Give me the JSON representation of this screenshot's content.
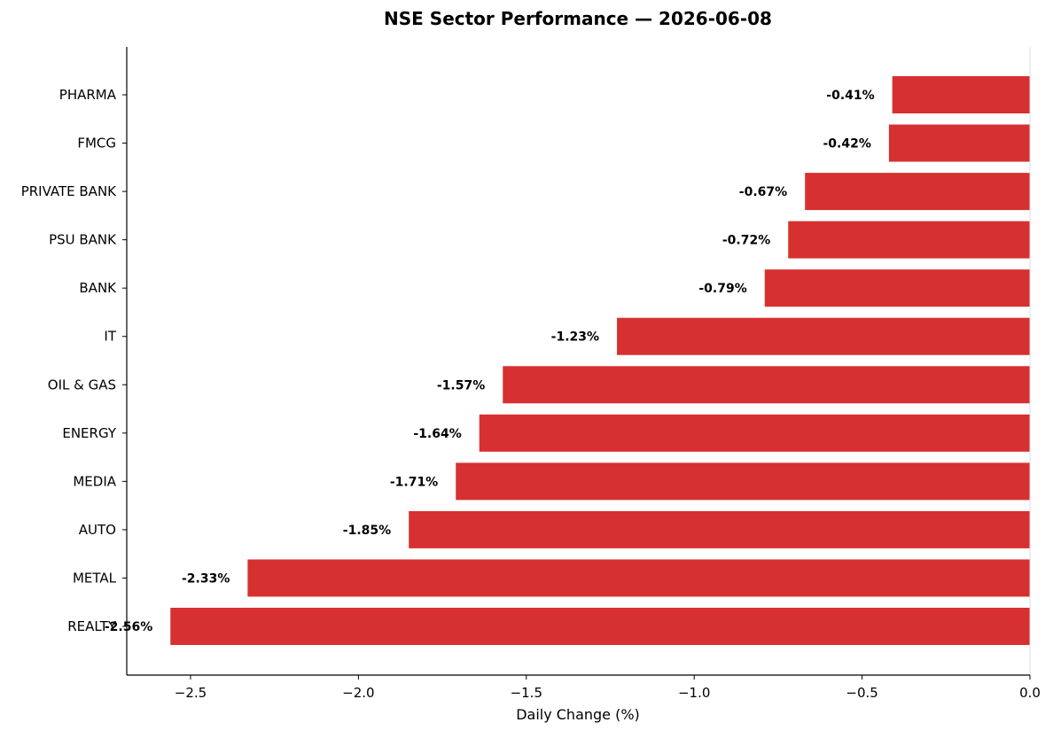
{
  "chart_data": {
    "type": "bar",
    "orientation": "horizontal",
    "title": "NSE Sector Performance — 2026-06-08",
    "xlabel": "Daily Change (%)",
    "ylabel": "",
    "categories": [
      "PHARMA",
      "FMCG",
      "PRIVATE BANK",
      "PSU BANK",
      "BANK",
      "IT",
      "OIL & GAS",
      "ENERGY",
      "MEDIA",
      "AUTO",
      "METAL",
      "REALTY"
    ],
    "values": [
      -0.41,
      -0.42,
      -0.67,
      -0.72,
      -0.79,
      -1.23,
      -1.57,
      -1.64,
      -1.71,
      -1.85,
      -2.33,
      -2.56
    ],
    "data_labels": [
      "-0.41%",
      "-0.42%",
      "-0.67%",
      "-0.72%",
      "-0.79%",
      "-1.23%",
      "-1.57%",
      "-1.64%",
      "-1.71%",
      "-1.85%",
      "-2.33%",
      "-2.56%"
    ],
    "xlim": [
      -2.69,
      0.0
    ],
    "xticks": [
      -2.5,
      -2.0,
      -1.5,
      -1.0,
      -0.5,
      0.0
    ],
    "xtick_labels": [
      "−2.5",
      "−2.0",
      "−1.5",
      "−1.0",
      "−0.5",
      "0.0"
    ],
    "grid": false,
    "legend": "none",
    "bar_color": "#d73030",
    "zero_line_color": "#dddddd"
  }
}
